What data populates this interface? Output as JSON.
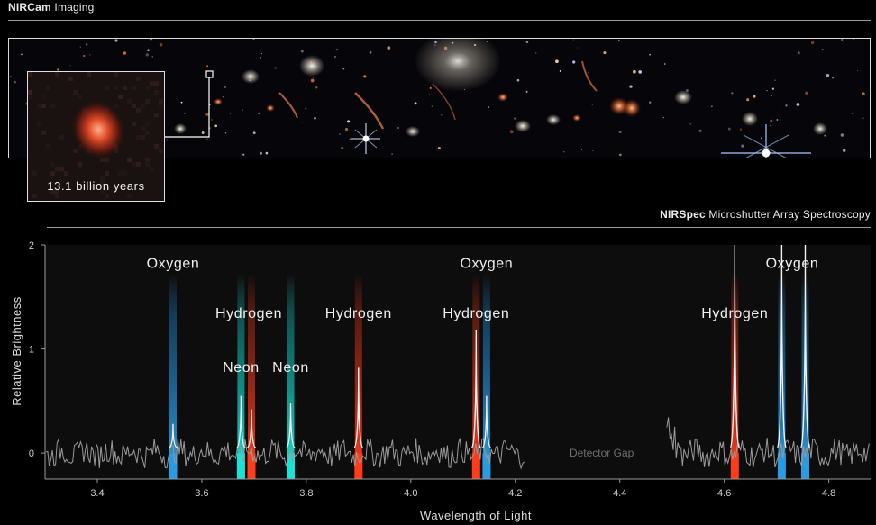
{
  "header_top": {
    "bold": "NIRCam",
    "rest": " Imaging"
  },
  "header_spec": {
    "bold": "NIRSpec",
    "rest": " Microshutter Array Spectroscopy"
  },
  "inset_label": "13.1 billion years",
  "colors": {
    "oxygen": "#2a9be0",
    "hydrogen": "#ff3b1a",
    "neon": "#19e3d6",
    "trace": "#9a9a9a",
    "plot_bg": "#0d0d0d"
  },
  "chart_data": {
    "type": "line",
    "title": "",
    "xlabel": "Wavelength of Light",
    "ylabel": "Relative Brightness",
    "xlim": [
      3.3,
      4.88
    ],
    "ylim": [
      -0.25,
      2
    ],
    "xticks": [
      "3.4",
      "3.6",
      "3.8",
      "4.0",
      "4.2",
      "4.4",
      "4.6",
      "4.8"
    ],
    "xtick_values": [
      3.4,
      3.6,
      3.8,
      4.0,
      4.2,
      4.4,
      4.6,
      4.8
    ],
    "yticks": [
      "0",
      "1",
      "2"
    ],
    "ytick_values": [
      0,
      1,
      2
    ],
    "grid": false,
    "detector_gap": {
      "label": "Detector Gap",
      "range": [
        4.22,
        4.49
      ]
    },
    "lines": [
      {
        "element": "Oxygen",
        "x": 3.545,
        "peak": 0.28
      },
      {
        "element": "Neon",
        "x": 3.675,
        "peak": 0.55
      },
      {
        "element": "Hydrogen",
        "x": 3.695,
        "peak": 0.42
      },
      {
        "element": "Neon",
        "x": 3.77,
        "peak": 0.48
      },
      {
        "element": "Hydrogen",
        "x": 3.9,
        "peak": 0.82
      },
      {
        "element": "Hydrogen",
        "x": 4.125,
        "peak": 1.18
      },
      {
        "element": "Oxygen",
        "x": 4.145,
        "peak": 0.55
      },
      {
        "element": "Hydrogen",
        "x": 4.62,
        "peak": 2.0
      },
      {
        "element": "Oxygen",
        "x": 4.71,
        "peak": 2.0
      },
      {
        "element": "Oxygen",
        "x": 4.755,
        "peak": 2.0
      }
    ],
    "labels": [
      {
        "text": "Oxygen",
        "x": 3.545,
        "y": 1.78
      },
      {
        "text": "Hydrogen",
        "x": 3.69,
        "y": 1.3
      },
      {
        "text": "Hydrogen",
        "x": 3.9,
        "y": 1.3
      },
      {
        "text": "Neon",
        "x": 3.675,
        "y": 0.78
      },
      {
        "text": "Neon",
        "x": 3.77,
        "y": 0.78
      },
      {
        "text": "Oxygen",
        "x": 4.145,
        "y": 1.78
      },
      {
        "text": "Hydrogen",
        "x": 4.125,
        "y": 1.3
      },
      {
        "text": "Hydrogen",
        "x": 4.62,
        "y": 1.3
      },
      {
        "text": "Oxygen",
        "x": 4.73,
        "y": 1.78
      }
    ]
  }
}
